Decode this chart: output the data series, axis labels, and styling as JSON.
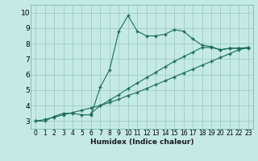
{
  "xlabel": "Humidex (Indice chaleur)",
  "background_color": "#c5eae6",
  "grid_color": "#9dccc8",
  "line_color": "#1a6b5a",
  "xlim": [
    -0.5,
    23.5
  ],
  "ylim": [
    2.5,
    10.5
  ],
  "xticks": [
    0,
    1,
    2,
    3,
    4,
    5,
    6,
    7,
    8,
    9,
    10,
    11,
    12,
    13,
    14,
    15,
    16,
    17,
    18,
    19,
    20,
    21,
    22,
    23
  ],
  "yticks": [
    3,
    4,
    5,
    6,
    7,
    8,
    9,
    10
  ],
  "line1_x": [
    0,
    1,
    2,
    3,
    4,
    5,
    6,
    7,
    8,
    9,
    10,
    11,
    12,
    13,
    14,
    15,
    16,
    17,
    18,
    19,
    20,
    21,
    22,
    23
  ],
  "line1_y": [
    3.0,
    3.0,
    3.3,
    3.5,
    3.5,
    3.4,
    3.4,
    5.2,
    6.3,
    8.8,
    9.8,
    8.8,
    8.5,
    8.5,
    8.6,
    8.9,
    8.8,
    8.3,
    7.9,
    7.8,
    7.6,
    7.7,
    7.7,
    7.7
  ],
  "line2_x": [
    0,
    1,
    2,
    3,
    4,
    5,
    6,
    7,
    8,
    9,
    10,
    11,
    12,
    13,
    14,
    15,
    16,
    17,
    18,
    19,
    20,
    21,
    22,
    23
  ],
  "line2_y": [
    3.0,
    3.1,
    3.25,
    3.4,
    3.55,
    3.7,
    3.85,
    4.0,
    4.2,
    4.4,
    4.65,
    4.85,
    5.1,
    5.35,
    5.6,
    5.85,
    6.1,
    6.35,
    6.6,
    6.85,
    7.1,
    7.35,
    7.6,
    7.75
  ],
  "line3_x": [
    6,
    7,
    8,
    9,
    10,
    11,
    12,
    13,
    14,
    15,
    16,
    17,
    18,
    19,
    20,
    21,
    22,
    23
  ],
  "line3_y": [
    3.5,
    4.0,
    4.35,
    4.7,
    5.1,
    5.45,
    5.8,
    6.15,
    6.5,
    6.85,
    7.15,
    7.45,
    7.75,
    7.75,
    7.6,
    7.7,
    7.7,
    7.75
  ]
}
